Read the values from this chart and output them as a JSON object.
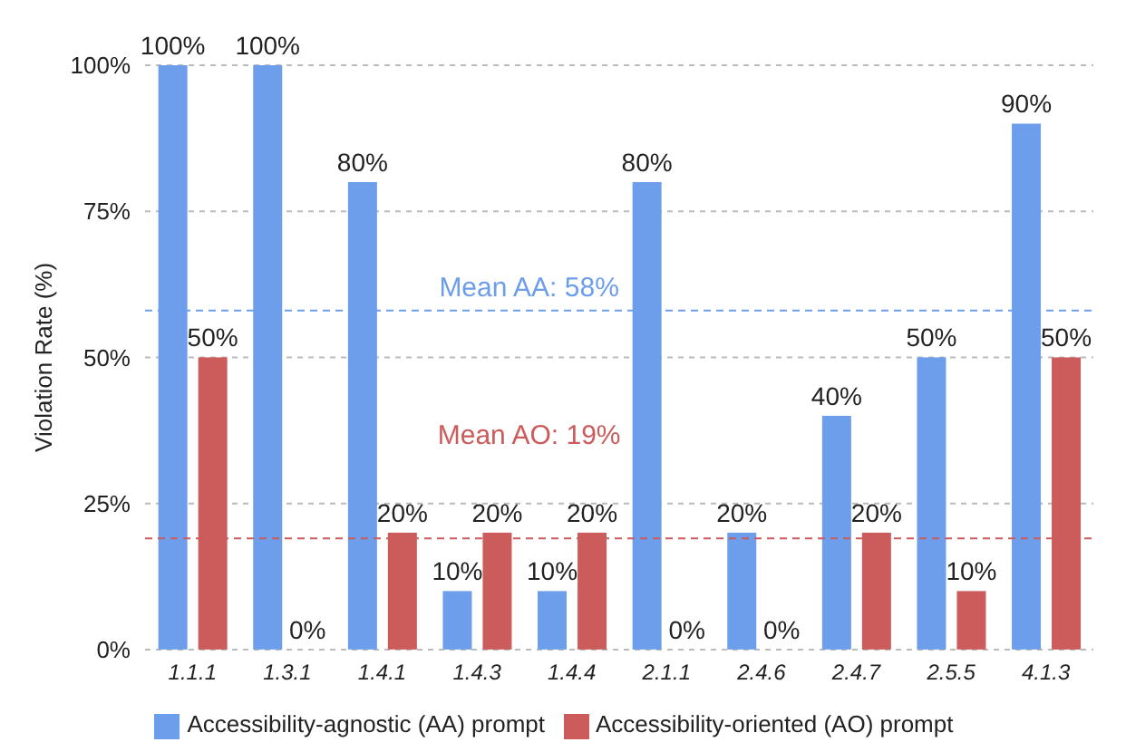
{
  "chart_data": {
    "type": "bar",
    "ylabel": "Violation Rate (%)",
    "categories": [
      "1.1.1",
      "1.3.1",
      "1.4.1",
      "1.4.3",
      "1.4.4",
      "2.1.1",
      "2.4.6",
      "2.4.7",
      "2.5.5",
      "4.1.3"
    ],
    "series": [
      {
        "name": "Accessibility-agnostic (AA) prompt",
        "color": "#6d9eeb",
        "values": [
          100,
          100,
          80,
          10,
          10,
          80,
          20,
          40,
          50,
          90
        ],
        "value_labels": [
          "100%",
          "100%",
          "80%",
          "10%",
          "10%",
          "80%",
          "20%",
          "40%",
          "50%",
          "90%"
        ]
      },
      {
        "name": "Accessibility-oriented (AO) prompt",
        "color": "#cc5b5b",
        "values": [
          50,
          0,
          20,
          20,
          20,
          0,
          0,
          20,
          10,
          50
        ],
        "value_labels": [
          "50%",
          "0%",
          "20%",
          "20%",
          "20%",
          "0%",
          "0%",
          "20%",
          "10%",
          "50%"
        ]
      }
    ],
    "ylim": [
      0,
      100
    ],
    "yticks": [
      {
        "value": 0,
        "label": "0%"
      },
      {
        "value": 25,
        "label": "25%"
      },
      {
        "value": 50,
        "label": "50%"
      },
      {
        "value": 75,
        "label": "75%"
      },
      {
        "value": 100,
        "label": "100%"
      }
    ],
    "grid": "y",
    "legend": "bottom",
    "ref_lines": [
      {
        "axis": "y",
        "value": 58,
        "label": "Mean AA: 58%",
        "color": "#6d9eeb",
        "line_style": "dashed"
      },
      {
        "axis": "y",
        "value": 19,
        "label": "Mean AO: 19%",
        "color": "#cc5b5b",
        "line_style": "dashed"
      }
    ]
  }
}
